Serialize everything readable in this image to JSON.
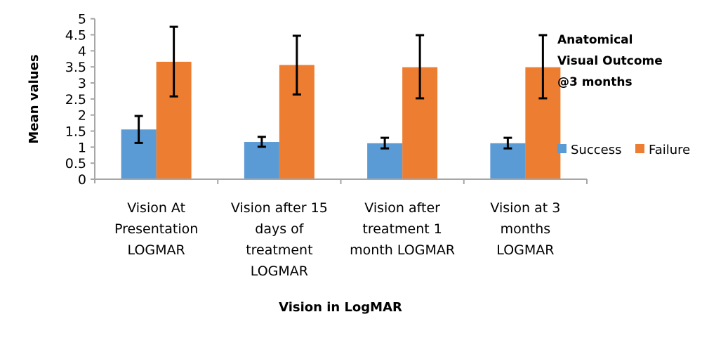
{
  "chart_data": {
    "type": "bar",
    "title": [
      "Anatomical",
      "Visual Outcome",
      "@3 months"
    ],
    "xlabel": "Vision in LogMAR",
    "ylabel": "Mean values",
    "ylim": [
      0,
      5
    ],
    "yticks": [
      "0",
      "0.5",
      "1",
      "1.5",
      "2",
      "2.5",
      "3",
      "3.5",
      "4",
      "4.5",
      "5"
    ],
    "ytick_values": [
      0,
      0.5,
      1,
      1.5,
      2,
      2.5,
      3,
      3.5,
      4,
      4.5,
      5
    ],
    "grid": false,
    "legend_position": "right",
    "categories": [
      [
        "Vision At",
        "Presentation",
        "LOGMAR"
      ],
      [
        "Vision after 15",
        "days of",
        "treatment",
        "LOGMAR"
      ],
      [
        "Vision after",
        "treatment 1",
        "month LOGMAR"
      ],
      [
        "Vision at 3",
        "months",
        "LOGMAR"
      ]
    ],
    "series": [
      {
        "name": "Success",
        "color": "#5b9bd5",
        "values": [
          1.55,
          1.16,
          1.12,
          1.12
        ],
        "error_upper": [
          1.97,
          1.32,
          1.29,
          1.29
        ],
        "error_lower": [
          1.13,
          1.01,
          0.96,
          0.96
        ]
      },
      {
        "name": "Failure",
        "color": "#ed7d31",
        "values": [
          3.66,
          3.56,
          3.49,
          3.49
        ],
        "error_upper": [
          4.75,
          4.47,
          4.49,
          4.49
        ],
        "error_lower": [
          2.58,
          2.64,
          2.52,
          2.52
        ]
      }
    ]
  }
}
